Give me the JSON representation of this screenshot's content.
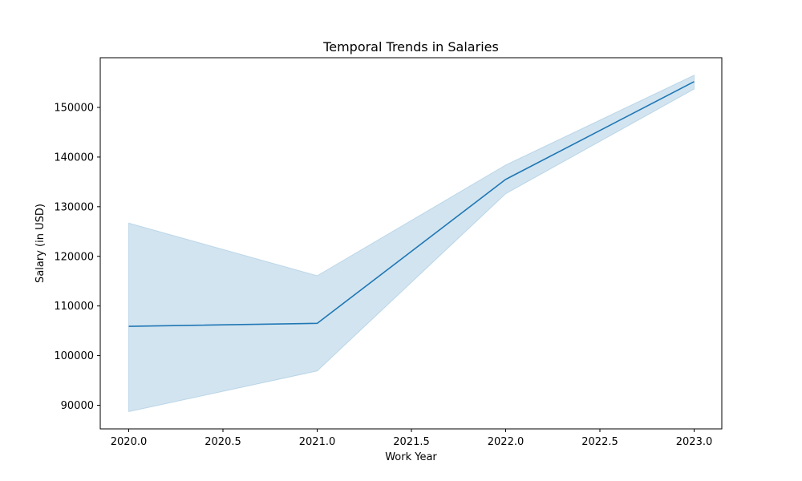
{
  "chart_data": {
    "type": "line",
    "title": "Temporal Trends in Salaries",
    "xlabel": "Work Year",
    "ylabel": "Salary (in USD)",
    "xlim": [
      1979.85,
      2023.15
    ],
    "ylim": [
      85300,
      159000
    ],
    "x_ticks": [
      2020.0,
      2020.5,
      2021.0,
      2021.5,
      2022.0,
      2022.5,
      2023.0
    ],
    "y_ticks": [
      90000,
      100000,
      110000,
      120000,
      130000,
      140000,
      150000
    ],
    "grid": false,
    "series": [
      {
        "x": [
          2020,
          2021,
          2022,
          2023
        ],
        "y": [
          105900,
          106500,
          135500,
          155200
        ],
        "ci_low": [
          88700,
          96900,
          132600,
          153700
        ],
        "ci_high": [
          126700,
          116100,
          138400,
          156500
        ]
      }
    ],
    "colors": {
      "line": "#1f77b4",
      "band": "#1f77b4"
    }
  }
}
